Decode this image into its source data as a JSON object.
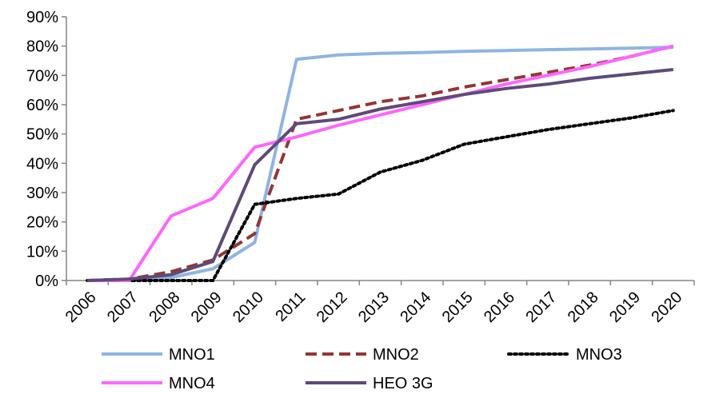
{
  "chart_data": {
    "type": "line",
    "x": [
      "2006",
      "2007",
      "2008",
      "2009",
      "2010",
      "2011",
      "2012",
      "2013",
      "2014",
      "2015",
      "2016",
      "2017",
      "2018",
      "2019",
      "2020"
    ],
    "yticks": [
      "0%",
      "10%",
      "20%",
      "30%",
      "40%",
      "50%",
      "60%",
      "70%",
      "80%",
      "90%"
    ],
    "ylim": [
      0,
      90
    ],
    "grid": false,
    "legend_position": "bottom",
    "series": [
      {
        "name": "MNO1",
        "color": "#8fb4e3",
        "dash": "solid",
        "values": [
          0,
          0,
          1,
          4,
          13,
          75.5,
          77,
          77.5,
          77.8,
          78.2,
          78.5,
          78.8,
          79,
          79.3,
          79.6
        ]
      },
      {
        "name": "MNO2",
        "color": "#943634",
        "dash": "dashed",
        "values": [
          0,
          0.5,
          3,
          7,
          16,
          55,
          58,
          61,
          63,
          66,
          68.5,
          71,
          73.5,
          76.5,
          80
        ]
      },
      {
        "name": "MNO3",
        "color": "#000000",
        "dash": "dotted",
        "values": [
          0,
          0,
          0,
          0,
          26,
          28,
          29.5,
          37,
          41,
          46.5,
          49,
          51.5,
          53.5,
          55.5,
          58
        ]
      },
      {
        "name": "MNO4",
        "color": "#ff66ff",
        "dash": "solid",
        "values": [
          0,
          0,
          22,
          28,
          45.5,
          49,
          53,
          56.5,
          60,
          63.5,
          67,
          70,
          73,
          76.5,
          80
        ]
      },
      {
        "name": "HEO 3G",
        "color": "#5f4a78",
        "dash": "solid",
        "values": [
          0,
          0.5,
          2,
          6.5,
          39.5,
          53.5,
          55,
          58.5,
          61,
          63.5,
          65.5,
          67,
          69,
          70.5,
          72
        ]
      }
    ]
  }
}
